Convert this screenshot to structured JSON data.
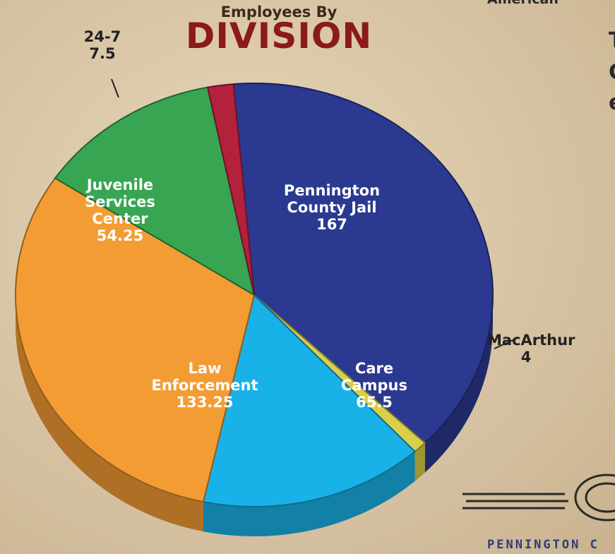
{
  "chart_data": {
    "type": "pie",
    "title": "Employees By",
    "subtitle": "DIVISION",
    "categories": [
      "Pennington County Jail",
      "MacArthur",
      "Care Campus",
      "Law Enforcement",
      "Juvenile Services Center",
      "24-7"
    ],
    "values": [
      167,
      4,
      65.5,
      133.25,
      54.25,
      7.5
    ],
    "colors": [
      "#2b3990",
      "#d9d04a",
      "#19b2e8",
      "#f39c34",
      "#38a552",
      "#b3213d"
    ],
    "background_text": [
      "American",
      "T",
      "C",
      "e",
      "PENNINGTON C"
    ]
  }
}
